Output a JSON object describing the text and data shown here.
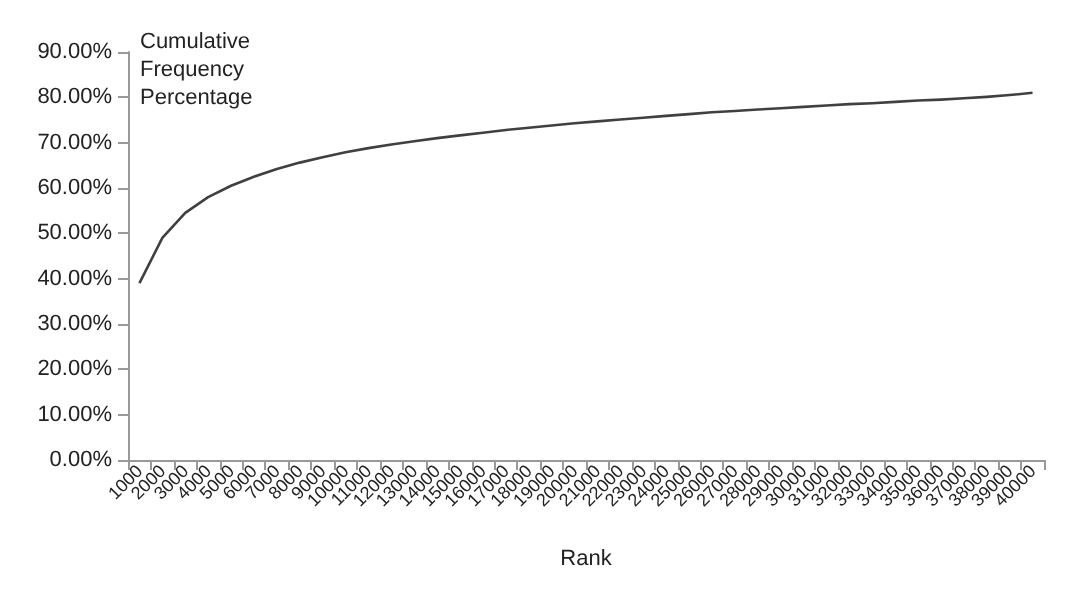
{
  "chart_data": {
    "type": "line",
    "ylabel": "Cumulative Frequency Percentage",
    "xlabel": "Rank",
    "categories": [
      "1000",
      "2000",
      "3000",
      "4000",
      "5000",
      "6000",
      "7000",
      "8000",
      "9000",
      "10000",
      "11000",
      "12000",
      "13000",
      "14000",
      "15000",
      "16000",
      "17000",
      "18000",
      "19000",
      "20000",
      "21000",
      "22000",
      "23000",
      "24000",
      "25000",
      "26000",
      "27000",
      "28000",
      "29000",
      "30000",
      "31000",
      "32000",
      "33000",
      "34000",
      "35000",
      "36000",
      "37000",
      "38000",
      "39000",
      "40000"
    ],
    "series": [
      {
        "color": "#404040",
        "values": [
          39,
          49,
          54.5,
          58,
          60.5,
          62.5,
          64.2,
          65.6,
          66.8,
          67.9,
          68.8,
          69.6,
          70.3,
          71,
          71.6,
          72.2,
          72.8,
          73.3,
          73.8,
          74.3,
          74.7,
          75.1,
          75.5,
          75.9,
          76.3,
          76.7,
          77,
          77.3,
          77.6,
          77.9,
          78.2,
          78.5,
          78.7,
          79,
          79.3,
          79.5,
          79.8,
          80.1,
          80.5,
          81
        ]
      }
    ],
    "ylim": [
      0,
      90
    ],
    "yticks": [
      {
        "value": 0,
        "label": "0.00%"
      },
      {
        "value": 10,
        "label": "10.00%"
      },
      {
        "value": 20,
        "label": "20.00%"
      },
      {
        "value": 30,
        "label": "30.00%"
      },
      {
        "value": 40,
        "label": "40.00%"
      },
      {
        "value": 50,
        "label": "50.00%"
      },
      {
        "value": 60,
        "label": "60.00%"
      },
      {
        "value": 70,
        "label": "70.00%"
      },
      {
        "value": 80,
        "label": "80.00%"
      },
      {
        "value": 90,
        "label": "90.00%"
      }
    ],
    "grid": false,
    "marker": "none",
    "line_style": "solid"
  }
}
